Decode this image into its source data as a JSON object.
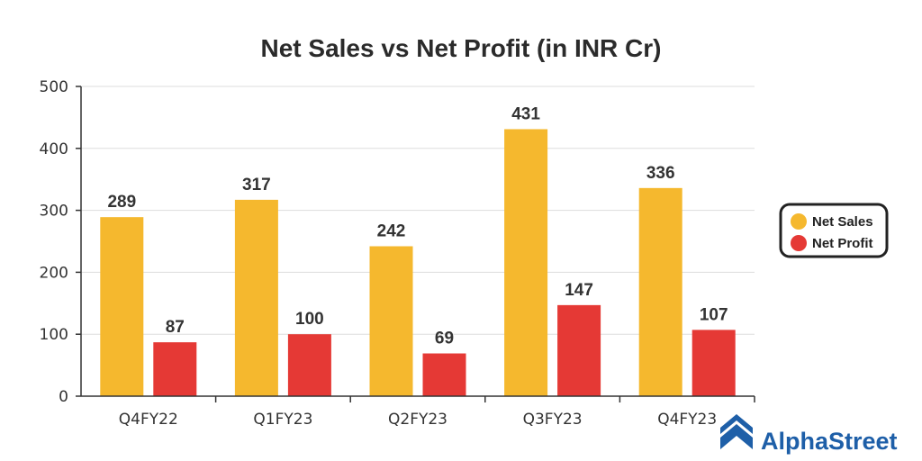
{
  "brand": {
    "name": "AlphaStreet",
    "color": "#1e5fa8"
  },
  "chart_data": {
    "type": "bar",
    "title": "Net Sales vs Net Profit (in INR Cr)",
    "xlabel": "",
    "ylabel": "",
    "categories": [
      "Q4FY22",
      "Q1FY23",
      "Q2FY23",
      "Q3FY23",
      "Q4FY23"
    ],
    "ylim": [
      0,
      500
    ],
    "yticks": [
      0,
      100,
      200,
      300,
      400,
      500
    ],
    "grid": true,
    "legend_position": "right",
    "data_labels": true,
    "series": [
      {
        "name": "Net Sales",
        "color": "#f5b82e",
        "values": [
          289,
          317,
          242,
          431,
          336
        ]
      },
      {
        "name": "Net Profit",
        "color": "#e53935",
        "values": [
          87,
          100,
          69,
          147,
          107
        ]
      }
    ]
  }
}
